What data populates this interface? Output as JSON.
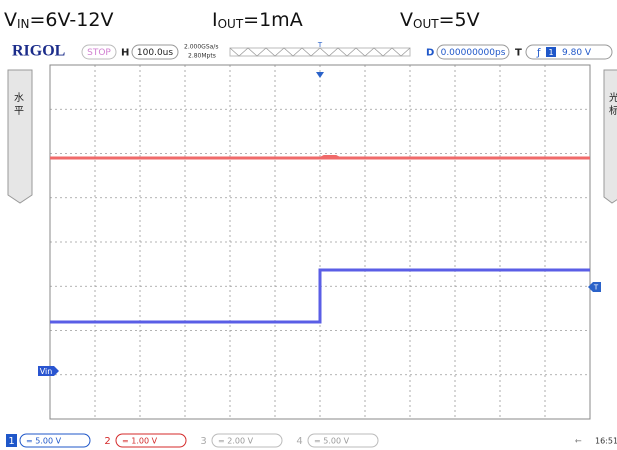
{
  "header": {
    "vin": {
      "base": "V",
      "sub": "IN",
      "rest": "=6V-12V"
    },
    "iout": {
      "base": "I",
      "sub": "OUT",
      "rest": "=1mA"
    },
    "vout": {
      "base": "V",
      "sub": "OUT",
      "rest": "=5V"
    }
  },
  "scope": {
    "brand": "RIGOL",
    "status": "STOP",
    "h_label": "H",
    "timebase": "100.0us",
    "sample_rate": "2.000GSa/s",
    "memory_depth": "2.80Mpts",
    "d_label": "D",
    "delay": "0.00000000ps",
    "t_label": "T",
    "trigger_channel": "1",
    "trigger_level": "9.80 V",
    "left_menu": [
      "水",
      "平"
    ],
    "right_menu": [
      "光",
      "标"
    ],
    "channel_marker": "Vin",
    "trigger_marker": "T",
    "channels": [
      {
        "number": "1",
        "scale": "= 5.00 V"
      },
      {
        "number": "2",
        "scale": "= 1.00 V"
      },
      {
        "number": "3",
        "scale": "= 2.00 V"
      },
      {
        "number": "4",
        "scale": "= 5.00 V"
      }
    ],
    "time": "16:51"
  }
}
